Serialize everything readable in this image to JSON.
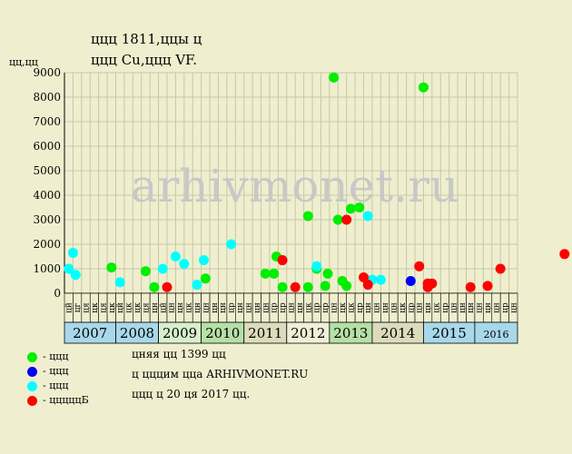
{
  "title_line1": "ццц 1811,ццы ц",
  "title_line2": "ццц Cu,ццц VF.",
  "ylabel": "цц,цц",
  "watermark": "arhivmonet.ru",
  "notes": [
    "цняя цц 1399 цц",
    "ц цццим цца ARHIVMONET.RU",
    "ццц ц 20 ця 2017 цц."
  ],
  "legend": [
    {
      "label": "- ццц",
      "color": "#00ee00"
    },
    {
      "label": "- ццц",
      "color": "#0000ff"
    },
    {
      "label": "- ццц",
      "color": "#00ffff"
    },
    {
      "label": "- цццццБ",
      "color": "#ff0000"
    }
  ],
  "chart_data": {
    "type": "scatter",
    "ylim": [
      0,
      9000
    ],
    "yticks": [
      "0",
      "1000",
      "2000",
      "3000",
      "4000",
      "5000",
      "6000",
      "7000",
      "8000",
      "9000"
    ],
    "month_ticks": [
      "цй",
      "цг",
      "ця",
      "цк",
      "ця",
      "цк",
      "цй",
      "цк",
      "цк",
      "ця",
      "цн",
      "цй",
      "цн",
      "цн",
      "цк",
      "цн",
      "цн",
      "цн",
      "цн",
      "цр",
      "цн",
      "цн",
      "цн",
      "цн",
      "цр",
      "цр",
      "цн",
      "цн",
      "цк",
      "цр",
      "цр",
      "цн",
      "цк",
      "цк",
      "цр",
      "цн",
      "цн",
      "цн",
      "цн",
      "цк",
      "цр",
      "цн",
      "цн",
      "цк",
      "цр",
      "цн",
      "цн",
      "цн",
      "цн",
      "цн",
      "цн",
      "цр",
      "цн"
    ],
    "years": [
      {
        "label": "2007",
        "color": "#a8d8ea"
      },
      {
        "label": "2008",
        "color": "#a8d8ea"
      },
      {
        "label": "2009",
        "color": "#d7f0cb"
      },
      {
        "label": "2010",
        "color": "#b5e0a6"
      },
      {
        "label": "2011",
        "color": "#dcdcbc"
      },
      {
        "label": "2012",
        "color": "#f0f0d8"
      },
      {
        "label": "2013",
        "color": "#b5e0a6"
      },
      {
        "label": "2014",
        "color": "#dcdcbc"
      },
      {
        "label": "2015",
        "color": "#a8d8ea"
      },
      {
        "label": "2016",
        "color": "#a8d8ea"
      }
    ],
    "year_spans": [
      [
        0,
        6
      ],
      [
        6,
        11
      ],
      [
        11,
        16
      ],
      [
        16,
        21
      ],
      [
        21,
        26
      ],
      [
        26,
        31
      ],
      [
        31,
        36
      ],
      [
        36,
        42
      ],
      [
        42,
        48
      ],
      [
        48,
        53
      ]
    ],
    "series": [
      {
        "color": "#00ee00",
        "points": [
          [
            5,
            1050
          ],
          [
            9,
            900
          ],
          [
            10,
            250
          ],
          [
            16,
            600
          ],
          [
            23,
            800
          ],
          [
            24,
            800
          ],
          [
            24.3,
            1500
          ],
          [
            25,
            250
          ],
          [
            28,
            3150
          ],
          [
            28,
            250
          ],
          [
            29,
            1000
          ],
          [
            30,
            300
          ],
          [
            30.3,
            800
          ],
          [
            31,
            8800
          ],
          [
            31.5,
            3000
          ],
          [
            32,
            500
          ],
          [
            32.5,
            300
          ],
          [
            33,
            3450
          ],
          [
            34,
            3500
          ],
          [
            41.5,
            8400
          ]
        ]
      },
      {
        "color": "#0000ff",
        "points": [
          [
            40,
            500
          ]
        ]
      },
      {
        "color": "#00ffff",
        "points": [
          [
            0,
            1000
          ],
          [
            0.5,
            1650
          ],
          [
            0.8,
            750
          ],
          [
            6,
            450
          ],
          [
            11,
            1000
          ],
          [
            12.5,
            1500
          ],
          [
            13.5,
            1200
          ],
          [
            15,
            350
          ],
          [
            15.8,
            1350
          ],
          [
            19,
            2000
          ],
          [
            29,
            1100
          ],
          [
            35,
            3150
          ],
          [
            35.5,
            550
          ],
          [
            36.5,
            550
          ]
        ]
      },
      {
        "color": "#ff0000",
        "points": [
          [
            11.5,
            250
          ],
          [
            25,
            1350
          ],
          [
            26.5,
            250
          ],
          [
            32.5,
            3000
          ],
          [
            34.5,
            650
          ],
          [
            35,
            350
          ],
          [
            41,
            1100
          ],
          [
            42,
            400
          ],
          [
            42,
            250
          ],
          [
            42.5,
            400
          ],
          [
            47,
            250
          ],
          [
            49,
            300
          ],
          [
            50.5,
            1000
          ],
          [
            58,
            1600
          ]
        ]
      }
    ]
  }
}
